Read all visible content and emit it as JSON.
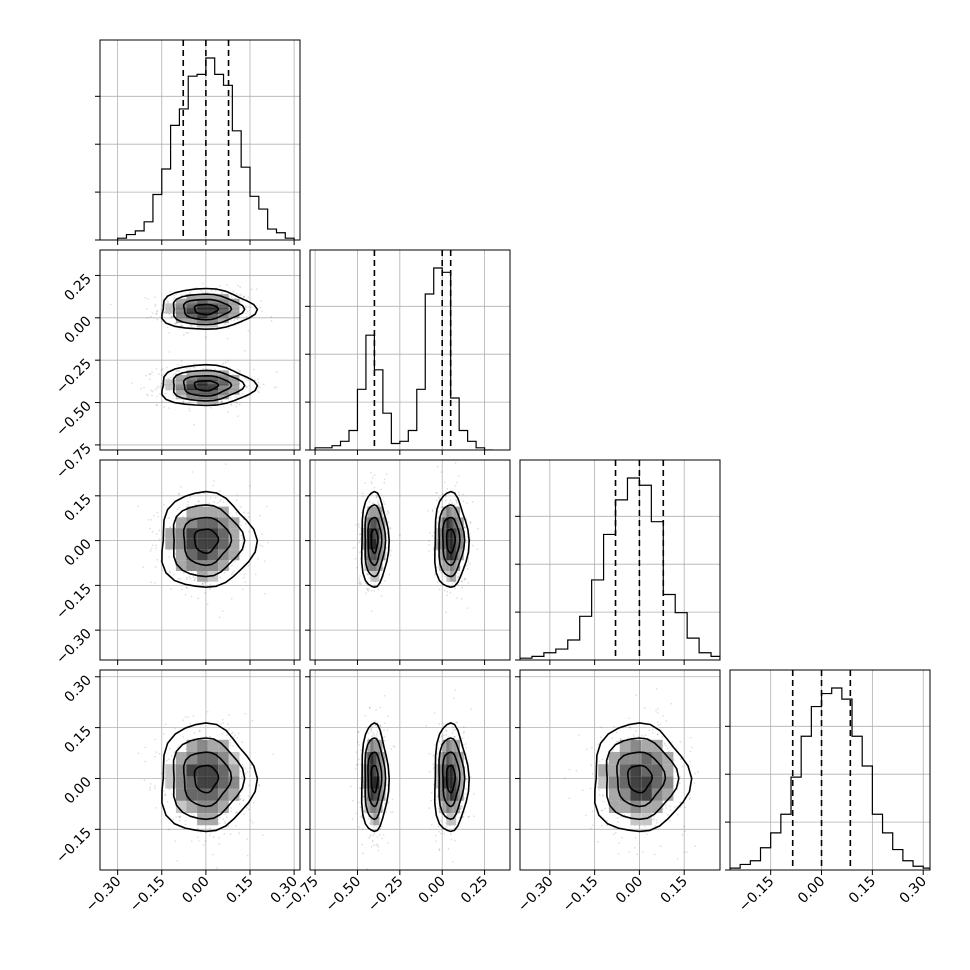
{
  "chart_data": {
    "type": "corner",
    "ndim": 4,
    "grid": true,
    "quantiles": [
      0.16,
      0.5,
      0.84
    ],
    "axis_ranges": [
      [
        -0.36,
        0.32
      ],
      [
        -0.78,
        0.4
      ],
      [
        -0.4,
        0.27
      ],
      [
        -0.27,
        0.32
      ]
    ],
    "tick_labels": [
      [
        "−0.30",
        "−0.15",
        "0.00",
        "0.15",
        "0.30"
      ],
      [
        "−0.75",
        "−0.50",
        "−0.25",
        "0.00",
        "0.25"
      ],
      [
        "−0.30",
        "−0.15",
        "0.00",
        "0.15"
      ],
      [
        "−0.15",
        "0.00",
        "0.15",
        "0.30"
      ]
    ],
    "tick_values": [
      [
        -0.3,
        -0.15,
        0.0,
        0.15,
        0.3
      ],
      [
        -0.75,
        -0.5,
        -0.25,
        0.0,
        0.25
      ],
      [
        -0.3,
        -0.15,
        0.0,
        0.15
      ],
      [
        -0.15,
        0.0,
        0.15,
        0.3
      ]
    ],
    "marginals": [
      {
        "param": 0,
        "bins": [
          -0.3,
          -0.27,
          -0.24,
          -0.21,
          -0.18,
          -0.15,
          -0.12,
          -0.09,
          -0.06,
          -0.03,
          0.0,
          0.03,
          0.06,
          0.09,
          0.12,
          0.15,
          0.18,
          0.21,
          0.24,
          0.27,
          0.3
        ],
        "counts": [
          0.01,
          0.03,
          0.05,
          0.1,
          0.25,
          0.39,
          0.63,
          0.72,
          0.9,
          0.91,
          1.0,
          0.91,
          0.85,
          0.6,
          0.4,
          0.24,
          0.17,
          0.06,
          0.04,
          0.01
        ],
        "quantile_values": [
          -0.077,
          0.0,
          0.077
        ]
      },
      {
        "param": 1,
        "bins": [
          -0.75,
          -0.7,
          -0.65,
          -0.6,
          -0.55,
          -0.5,
          -0.45,
          -0.4,
          -0.35,
          -0.3,
          -0.25,
          -0.2,
          -0.15,
          -0.1,
          -0.05,
          0.0,
          0.05,
          0.1,
          0.15,
          0.2,
          0.25,
          0.3
        ],
        "counts": [
          0.01,
          0.01,
          0.02,
          0.04,
          0.09,
          0.28,
          0.53,
          0.37,
          0.17,
          0.03,
          0.04,
          0.09,
          0.28,
          0.72,
          0.84,
          0.82,
          0.24,
          0.09,
          0.04,
          0.01,
          0.0
        ],
        "quantile_values": [
          -0.4,
          0.0,
          0.05
        ]
      },
      {
        "param": 2,
        "bins": [
          -0.4,
          -0.36,
          -0.32,
          -0.28,
          -0.24,
          -0.2,
          -0.16,
          -0.12,
          -0.08,
          -0.04,
          0.0,
          0.04,
          0.08,
          0.12,
          0.16,
          0.2,
          0.24,
          0.27
        ],
        "counts": [
          0.01,
          0.02,
          0.04,
          0.06,
          0.11,
          0.24,
          0.44,
          0.69,
          0.88,
          1.0,
          0.96,
          0.76,
          0.36,
          0.26,
          0.12,
          0.04,
          0.02
        ],
        "quantile_values": [
          -0.08,
          0.0,
          0.08
        ]
      },
      {
        "param": 3,
        "bins": [
          -0.27,
          -0.24,
          -0.21,
          -0.18,
          -0.15,
          -0.12,
          -0.09,
          -0.06,
          -0.03,
          0.0,
          0.03,
          0.06,
          0.09,
          0.12,
          0.15,
          0.18,
          0.21,
          0.24,
          0.27,
          0.3,
          0.32
        ],
        "counts": [
          0.01,
          0.03,
          0.05,
          0.12,
          0.2,
          0.3,
          0.5,
          0.72,
          0.88,
          0.95,
          0.98,
          0.92,
          0.72,
          0.56,
          0.3,
          0.2,
          0.11,
          0.05,
          0.02,
          0.01
        ],
        "quantile_values": [
          -0.085,
          0.0,
          0.085
        ]
      }
    ],
    "joints": [
      {
        "x_param": 0,
        "y_param": 1,
        "modes": [
          {
            "x": 0.0,
            "y": 0.05,
            "sx": 0.08,
            "sy": 0.06
          },
          {
            "x": 0.0,
            "y": -0.4,
            "sx": 0.08,
            "sy": 0.06
          }
        ]
      },
      {
        "x_param": 0,
        "y_param": 2,
        "modes": [
          {
            "x": 0.0,
            "y": 0.0,
            "sx": 0.08,
            "sy": 0.08
          }
        ]
      },
      {
        "x_param": 1,
        "y_param": 2,
        "modes": [
          {
            "x": -0.4,
            "y": 0.0,
            "sx": 0.04,
            "sy": 0.08
          },
          {
            "x": 0.05,
            "y": 0.0,
            "sx": 0.05,
            "sy": 0.08
          }
        ]
      },
      {
        "x_param": 0,
        "y_param": 3,
        "modes": [
          {
            "x": 0.0,
            "y": 0.0,
            "sx": 0.08,
            "sy": 0.08
          }
        ]
      },
      {
        "x_param": 1,
        "y_param": 3,
        "modes": [
          {
            "x": -0.4,
            "y": 0.0,
            "sx": 0.04,
            "sy": 0.08
          },
          {
            "x": 0.05,
            "y": 0.0,
            "sx": 0.05,
            "sy": 0.08
          }
        ]
      },
      {
        "x_param": 2,
        "y_param": 3,
        "modes": [
          {
            "x": 0.0,
            "y": 0.0,
            "sx": 0.08,
            "sy": 0.08
          }
        ]
      }
    ],
    "contour_levels_sigma": [
      0.5,
      1.0,
      1.5,
      2.0
    ]
  }
}
